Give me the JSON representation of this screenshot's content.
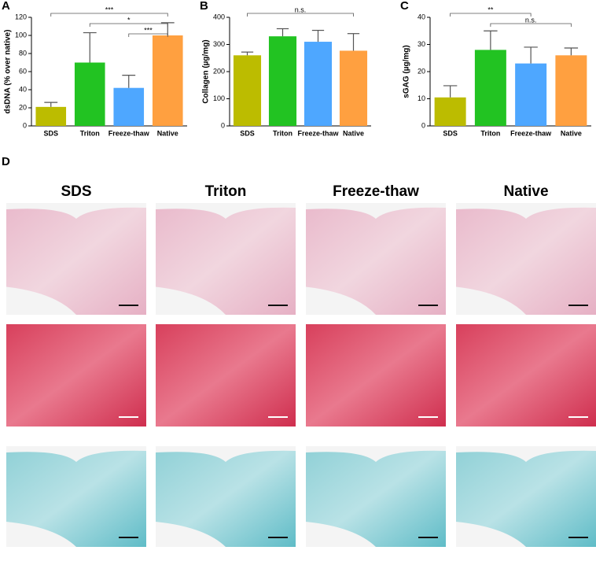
{
  "chart_data": [
    {
      "type": "bar",
      "panel": "A",
      "ylabel": "dsDNA (% over native)",
      "categories": [
        "SDS",
        "Triton",
        "Freeze-thaw",
        "Native"
      ],
      "values": [
        21,
        70,
        42,
        100
      ],
      "errors": [
        5,
        33,
        14,
        14
      ],
      "colors": [
        "#bcbc00",
        "#22c322",
        "#4ea7ff",
        "#ffa040"
      ],
      "ylim": [
        0,
        120
      ],
      "yticks": [
        0,
        20,
        40,
        60,
        80,
        100,
        120
      ],
      "annotations": [
        {
          "label": "***",
          "between": [
            "SDS",
            "Native"
          ]
        },
        {
          "label": "*",
          "between": [
            "Triton",
            "Native"
          ]
        },
        {
          "label": "***",
          "between": [
            "Freeze-thaw",
            "Native"
          ]
        }
      ]
    },
    {
      "type": "bar",
      "panel": "B",
      "ylabel": "Collagen (µg/mg)",
      "categories": [
        "SDS",
        "Triton",
        "Freeze-thaw",
        "Native"
      ],
      "values": [
        260,
        330,
        310,
        277
      ],
      "errors": [
        12,
        28,
        42,
        63
      ],
      "colors": [
        "#bcbc00",
        "#22c322",
        "#4ea7ff",
        "#ffa040"
      ],
      "ylim": [
        0,
        400
      ],
      "yticks": [
        0,
        100,
        200,
        300,
        400
      ],
      "annotations": [
        {
          "label": "n.s.",
          "between": [
            "SDS",
            "Native"
          ]
        }
      ]
    },
    {
      "type": "bar",
      "panel": "C",
      "ylabel": "sGAG (µg/mg)",
      "categories": [
        "SDS",
        "Triton",
        "Freeze-thaw",
        "Native"
      ],
      "values": [
        10.5,
        28,
        23,
        26
      ],
      "errors": [
        4.3,
        7,
        6,
        2.7
      ],
      "colors": [
        "#bcbc00",
        "#22c322",
        "#4ea7ff",
        "#ffa040"
      ],
      "ylim": [
        0,
        40
      ],
      "yticks": [
        0,
        10,
        20,
        30,
        40
      ],
      "annotations": [
        {
          "label": "**",
          "between": [
            "SDS",
            "Freeze-thaw"
          ]
        },
        {
          "label": "n.s.",
          "between": [
            "Triton",
            "Native"
          ]
        }
      ]
    }
  ],
  "panel_d": {
    "label": "D",
    "columns": [
      "SDS",
      "Triton",
      "Freeze-thaw",
      "Native"
    ]
  }
}
